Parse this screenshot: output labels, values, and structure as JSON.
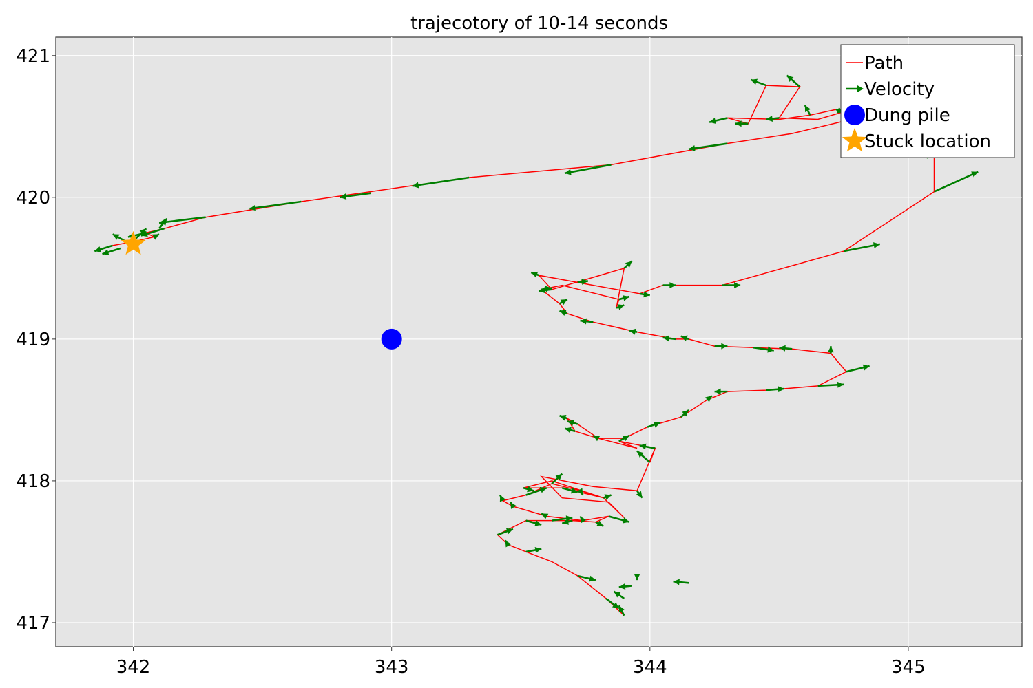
{
  "chart_data": {
    "type": "line",
    "title": "trajecotory of 10-14 seconds",
    "xlabel": "",
    "ylabel": "",
    "xlim": [
      341.7,
      345.44
    ],
    "ylim": [
      416.83,
      421.13
    ],
    "xticks": [
      342,
      343,
      344,
      345
    ],
    "yticks": [
      417,
      418,
      419,
      420,
      421
    ],
    "grid": true,
    "background": "#e5e5e5",
    "legend": {
      "position": "top-right",
      "entries": [
        {
          "label": "Path",
          "marker": "line",
          "color": "#ff0000"
        },
        {
          "label": "Velocity",
          "marker": "arrow",
          "color": "#007f00"
        },
        {
          "label": "Dung pile",
          "marker": "circle",
          "color": "#0000ff"
        },
        {
          "label": "Stuck location",
          "marker": "star",
          "color": "#ffa500"
        }
      ]
    },
    "series": [
      {
        "name": "Path",
        "color": "#ff0000",
        "points": [
          [
            343.9,
            417.05
          ],
          [
            343.83,
            417.17
          ],
          [
            343.72,
            417.33
          ],
          [
            343.62,
            417.43
          ],
          [
            343.52,
            417.5
          ],
          [
            343.45,
            417.55
          ],
          [
            343.41,
            417.62
          ],
          [
            343.52,
            417.72
          ],
          [
            343.7,
            417.72
          ],
          [
            343.79,
            417.71
          ],
          [
            343.84,
            417.75
          ],
          [
            343.74,
            417.72
          ],
          [
            343.6,
            417.75
          ],
          [
            343.47,
            417.82
          ],
          [
            343.43,
            417.86
          ],
          [
            343.52,
            417.9
          ],
          [
            343.62,
            417.98
          ],
          [
            343.73,
            417.93
          ],
          [
            343.82,
            417.88
          ],
          [
            343.66,
            417.95
          ],
          [
            343.51,
            417.95
          ],
          [
            343.62,
            418.0
          ],
          [
            343.82,
            417.88
          ],
          [
            343.9,
            417.74
          ],
          [
            343.84,
            417.85
          ],
          [
            343.66,
            417.88
          ],
          [
            343.58,
            418.03
          ],
          [
            343.78,
            417.96
          ],
          [
            343.95,
            417.93
          ],
          [
            344.02,
            418.23
          ],
          [
            344.0,
            418.13
          ],
          [
            344.02,
            418.23
          ],
          [
            343.88,
            418.28
          ],
          [
            343.95,
            418.23
          ],
          [
            343.8,
            418.3
          ],
          [
            343.71,
            418.35
          ],
          [
            343.68,
            418.44
          ],
          [
            343.72,
            418.4
          ],
          [
            343.8,
            418.3
          ],
          [
            343.9,
            418.3
          ],
          [
            343.99,
            418.38
          ],
          [
            344.12,
            418.45
          ],
          [
            344.22,
            418.57
          ],
          [
            344.3,
            418.63
          ],
          [
            344.45,
            418.64
          ],
          [
            344.65,
            418.67
          ],
          [
            344.76,
            418.77
          ],
          [
            344.7,
            418.9
          ],
          [
            344.55,
            418.93
          ],
          [
            344.4,
            418.94
          ],
          [
            344.25,
            418.95
          ],
          [
            344.15,
            419.0
          ],
          [
            344.1,
            419.0
          ],
          [
            343.95,
            419.05
          ],
          [
            343.78,
            419.12
          ],
          [
            343.68,
            419.18
          ],
          [
            343.65,
            419.25
          ],
          [
            343.58,
            419.35
          ],
          [
            343.66,
            419.38
          ],
          [
            343.88,
            419.28
          ],
          [
            343.87,
            419.22
          ],
          [
            343.9,
            419.5
          ],
          [
            343.62,
            419.35
          ],
          [
            343.57,
            419.45
          ],
          [
            343.72,
            419.4
          ],
          [
            343.96,
            419.32
          ],
          [
            344.05,
            419.38
          ],
          [
            344.28,
            419.38
          ],
          [
            344.75,
            419.62
          ],
          [
            345.1,
            420.04
          ],
          [
            345.1,
            420.3
          ],
          [
            345.05,
            420.38
          ],
          [
            344.93,
            420.48
          ],
          [
            344.78,
            420.5
          ],
          [
            344.78,
            420.62
          ],
          [
            344.65,
            420.55
          ],
          [
            344.5,
            420.56
          ],
          [
            344.58,
            420.78
          ],
          [
            344.45,
            420.79
          ],
          [
            344.38,
            420.52
          ],
          [
            344.3,
            420.56
          ],
          [
            344.5,
            420.55
          ],
          [
            344.62,
            420.58
          ],
          [
            344.72,
            420.62
          ],
          [
            344.82,
            420.62
          ],
          [
            344.78,
            420.55
          ],
          [
            344.55,
            420.45
          ],
          [
            344.3,
            420.38
          ],
          [
            344.0,
            420.28
          ],
          [
            343.85,
            420.23
          ],
          [
            343.3,
            420.14
          ],
          [
            342.65,
            419.97
          ],
          [
            342.28,
            419.86
          ],
          [
            342.12,
            419.78
          ],
          [
            342.05,
            419.75
          ],
          [
            342.08,
            419.72
          ],
          [
            341.98,
            419.68
          ],
          [
            341.92,
            419.66
          ]
        ]
      },
      {
        "name": "Velocity",
        "color": "#007f00",
        "arrows": [
          [
            343.72,
            417.33,
            343.79,
            417.3
          ],
          [
            343.83,
            417.17,
            343.88,
            417.1
          ],
          [
            343.9,
            417.05,
            343.88,
            417.12
          ],
          [
            343.9,
            417.17,
            343.86,
            417.22
          ],
          [
            343.93,
            417.26,
            343.88,
            417.25
          ],
          [
            343.95,
            417.31,
            343.95,
            417.3
          ],
          [
            344.15,
            417.28,
            344.09,
            417.29
          ],
          [
            343.52,
            417.5,
            343.58,
            417.52
          ],
          [
            343.45,
            417.55,
            343.44,
            417.58
          ],
          [
            343.41,
            417.62,
            343.47,
            417.66
          ],
          [
            343.52,
            417.72,
            343.58,
            417.69
          ],
          [
            343.62,
            417.72,
            343.7,
            417.74
          ],
          [
            343.7,
            417.72,
            343.66,
            417.7
          ],
          [
            343.79,
            417.71,
            343.82,
            417.68
          ],
          [
            343.84,
            417.75,
            343.92,
            417.71
          ],
          [
            343.74,
            417.72,
            343.73,
            417.75
          ],
          [
            343.6,
            417.75,
            343.58,
            417.77
          ],
          [
            343.47,
            417.82,
            343.46,
            417.85
          ],
          [
            343.43,
            417.86,
            343.42,
            417.9
          ],
          [
            343.52,
            417.9,
            343.6,
            417.95
          ],
          [
            343.62,
            417.98,
            343.66,
            418.05
          ],
          [
            343.73,
            417.93,
            343.74,
            417.9
          ],
          [
            343.82,
            417.88,
            343.85,
            417.9
          ],
          [
            343.66,
            417.95,
            343.72,
            417.92
          ],
          [
            343.51,
            417.95,
            343.55,
            417.93
          ],
          [
            343.95,
            417.93,
            343.97,
            417.88
          ],
          [
            344.02,
            418.23,
            343.96,
            418.25
          ],
          [
            344.0,
            418.13,
            343.95,
            418.21
          ],
          [
            343.88,
            418.28,
            343.92,
            418.32
          ],
          [
            343.8,
            418.3,
            343.78,
            418.32
          ],
          [
            343.71,
            418.35,
            343.67,
            418.37
          ],
          [
            343.68,
            418.44,
            343.65,
            418.46
          ],
          [
            343.72,
            418.4,
            343.68,
            418.42
          ],
          [
            343.99,
            418.38,
            344.04,
            418.41
          ],
          [
            344.12,
            418.45,
            344.15,
            418.5
          ],
          [
            344.22,
            418.57,
            344.24,
            418.6
          ],
          [
            344.3,
            418.63,
            344.25,
            418.63
          ],
          [
            344.45,
            418.64,
            344.52,
            418.65
          ],
          [
            344.65,
            418.67,
            344.75,
            418.68
          ],
          [
            344.76,
            418.77,
            344.85,
            418.81
          ],
          [
            344.7,
            418.9,
            344.7,
            418.95
          ],
          [
            344.55,
            418.93,
            344.5,
            418.94
          ],
          [
            344.4,
            418.94,
            344.48,
            418.92
          ],
          [
            344.25,
            418.95,
            344.3,
            418.95
          ],
          [
            344.15,
            419.0,
            344.12,
            419.02
          ],
          [
            344.1,
            419.0,
            344.05,
            419.01
          ],
          [
            343.95,
            419.05,
            343.92,
            419.06
          ],
          [
            343.78,
            419.12,
            343.73,
            419.13
          ],
          [
            343.68,
            419.18,
            343.65,
            419.2
          ],
          [
            343.65,
            419.25,
            343.68,
            419.28
          ],
          [
            343.58,
            419.35,
            343.62,
            419.36
          ],
          [
            343.88,
            419.28,
            343.92,
            419.3
          ],
          [
            343.87,
            419.22,
            343.9,
            419.24
          ],
          [
            343.9,
            419.5,
            343.93,
            419.55
          ],
          [
            343.62,
            419.35,
            343.57,
            419.34
          ],
          [
            343.57,
            419.45,
            343.54,
            419.47
          ],
          [
            343.72,
            419.4,
            343.76,
            419.41
          ],
          [
            343.96,
            419.32,
            344.0,
            419.31
          ],
          [
            344.05,
            419.38,
            344.1,
            419.38
          ],
          [
            344.28,
            419.38,
            344.35,
            419.38
          ],
          [
            344.75,
            419.62,
            344.89,
            419.67
          ],
          [
            345.1,
            420.04,
            345.27,
            420.18
          ],
          [
            345.1,
            420.3,
            345.05,
            420.29
          ],
          [
            344.78,
            420.62,
            344.75,
            420.55
          ],
          [
            344.5,
            420.56,
            344.45,
            420.55
          ],
          [
            344.58,
            420.78,
            344.53,
            420.86
          ],
          [
            344.45,
            420.79,
            344.39,
            420.83
          ],
          [
            344.38,
            420.52,
            344.33,
            420.52
          ],
          [
            344.3,
            420.56,
            344.23,
            420.53
          ],
          [
            344.62,
            420.58,
            344.6,
            420.65
          ],
          [
            344.72,
            420.62,
            344.75,
            420.6
          ],
          [
            344.3,
            420.38,
            344.15,
            420.34
          ],
          [
            343.85,
            420.23,
            343.67,
            420.17
          ],
          [
            343.3,
            420.14,
            343.08,
            420.08
          ],
          [
            342.65,
            419.97,
            342.45,
            419.92
          ],
          [
            342.92,
            420.03,
            342.8,
            420.0
          ],
          [
            342.28,
            419.86,
            342.1,
            419.82
          ],
          [
            342.12,
            419.78,
            342.03,
            419.73
          ],
          [
            342.05,
            419.75,
            341.98,
            419.72
          ],
          [
            342.08,
            419.72,
            342.1,
            419.74
          ],
          [
            341.98,
            419.68,
            341.92,
            419.74
          ],
          [
            341.92,
            419.66,
            341.85,
            419.62
          ],
          [
            342.01,
            419.71,
            342.05,
            419.78
          ],
          [
            342.1,
            419.78,
            342.13,
            419.85
          ],
          [
            341.95,
            419.64,
            341.88,
            419.6
          ]
        ]
      },
      {
        "name": "Dung pile",
        "color": "#0000ff",
        "points": [
          [
            343.0,
            419.0
          ]
        ]
      },
      {
        "name": "Stuck location",
        "color": "#ffa500",
        "points": [
          [
            342.0,
            419.67
          ]
        ]
      }
    ]
  }
}
